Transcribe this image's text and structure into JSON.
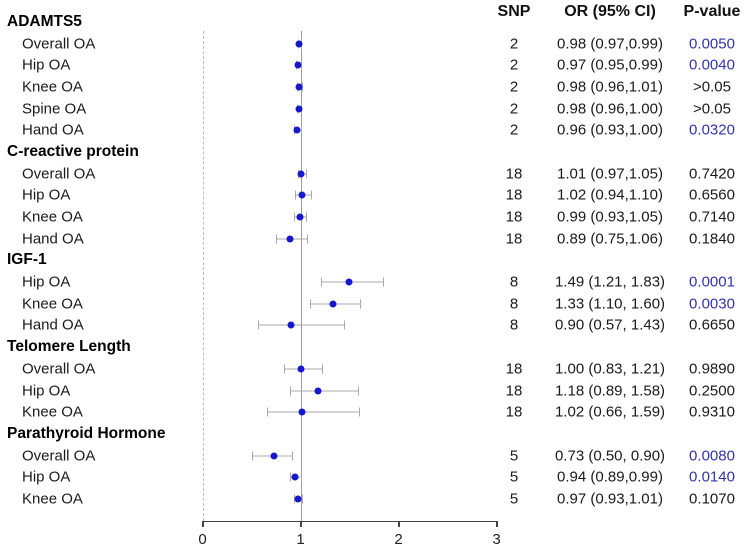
{
  "chart_data": {
    "type": "scatter",
    "subtype": "forest-plot",
    "title": "",
    "xlabel": "",
    "xlim": [
      0,
      3
    ],
    "x_ticks": [
      "0",
      "1",
      "2",
      "3"
    ],
    "reference_line_x": 1,
    "dashed_line_x": 0,
    "grid": false,
    "columns": {
      "snp": "SNP",
      "or": "OR (95% CI)",
      "p": "P-value"
    },
    "colors": {
      "point": "#1717cd",
      "whisker": "#a9a9a9",
      "significant_p": "#3333aa",
      "normal_text": "#1a1a1a",
      "reference_line": "#9c9c9c",
      "dashed_line": "#a9c2cd"
    },
    "groups": [
      {
        "label": "ADAMTS5",
        "rows": [
          {
            "label": "Overall OA",
            "snp": "2",
            "or": 0.98,
            "lo": 0.97,
            "hi": 0.99,
            "or_text": "0.98 (0.97,0.99)",
            "p": "0.0050",
            "sig": true
          },
          {
            "label": "Hip OA",
            "snp": "2",
            "or": 0.97,
            "lo": 0.95,
            "hi": 0.99,
            "or_text": "0.97 (0.95,0.99)",
            "p": "0.0040",
            "sig": true
          },
          {
            "label": "Knee OA",
            "snp": "2",
            "or": 0.98,
            "lo": 0.96,
            "hi": 1.01,
            "or_text": "0.98 (0.96,1.01)",
            "p": ">0.05",
            "sig": false
          },
          {
            "label": "Spine OA",
            "snp": "2",
            "or": 0.98,
            "lo": 0.96,
            "hi": 1.0,
            "or_text": "0.98 (0.96,1.00)",
            "p": ">0.05",
            "sig": false
          },
          {
            "label": "Hand OA",
            "snp": "2",
            "or": 0.96,
            "lo": 0.93,
            "hi": 1.0,
            "or_text": "0.96 (0.93,1.00)",
            "p": "0.0320",
            "sig": true
          }
        ]
      },
      {
        "label": "C-reactive protein",
        "rows": [
          {
            "label": "Overall OA",
            "snp": "18",
            "or": 1.01,
            "lo": 0.97,
            "hi": 1.05,
            "or_text": "1.01 (0.97,1.05)",
            "p": "0.7420",
            "sig": false
          },
          {
            "label": "Hip OA",
            "snp": "18",
            "or": 1.02,
            "lo": 0.94,
            "hi": 1.1,
            "or_text": "1.02 (0.94,1.10)",
            "p": "0.6560",
            "sig": false
          },
          {
            "label": "Knee OA",
            "snp": "18",
            "or": 0.99,
            "lo": 0.93,
            "hi": 1.05,
            "or_text": "0.99 (0.93,1.05)",
            "p": "0.7140",
            "sig": false
          },
          {
            "label": "Hand OA",
            "snp": "18",
            "or": 0.89,
            "lo": 0.75,
            "hi": 1.06,
            "or_text": "0.89 (0.75,1.06)",
            "p": "0.1840",
            "sig": false
          }
        ]
      },
      {
        "label": "IGF-1",
        "rows": [
          {
            "label": "Hip OA",
            "snp": "8",
            "or": 1.49,
            "lo": 1.21,
            "hi": 1.83,
            "or_text": "1.49 (1.21, 1.83)",
            "p": "0.0001",
            "sig": true
          },
          {
            "label": "Knee OA",
            "snp": "8",
            "or": 1.33,
            "lo": 1.1,
            "hi": 1.6,
            "or_text": "1.33 (1.10, 1.60)",
            "p": "0.0030",
            "sig": true
          },
          {
            "label": "Hand OA",
            "snp": "8",
            "or": 0.9,
            "lo": 0.57,
            "hi": 1.43,
            "or_text": "0.90 (0.57, 1.43)",
            "p": "0.6650",
            "sig": false
          }
        ]
      },
      {
        "label": "Telomere Length",
        "rows": [
          {
            "label": "Overall OA",
            "snp": "18",
            "or": 1.0,
            "lo": 0.83,
            "hi": 1.21,
            "or_text": "1.00 (0.83, 1.21)",
            "p": "0.9890",
            "sig": false
          },
          {
            "label": "Hip OA",
            "snp": "18",
            "or": 1.18,
            "lo": 0.89,
            "hi": 1.58,
            "or_text": "1.18 (0.89, 1.58)",
            "p": "0.2500",
            "sig": false
          },
          {
            "label": "Knee OA",
            "snp": "18",
            "or": 1.02,
            "lo": 0.66,
            "hi": 1.59,
            "or_text": "1.02 (0.66, 1.59)",
            "p": "0.9310",
            "sig": false
          }
        ]
      },
      {
        "label": "Parathyroid Hormone",
        "rows": [
          {
            "label": "Overall OA",
            "snp": "5",
            "or": 0.73,
            "lo": 0.5,
            "hi": 0.9,
            "or_text": "0.73 (0.50, 0.90)",
            "p": "0.0080",
            "sig": true
          },
          {
            "label": "Hip OA",
            "snp": "5",
            "or": 0.94,
            "lo": 0.89,
            "hi": 0.99,
            "or_text": "0.94 (0.89,0.99)",
            "p": "0.0140",
            "sig": true
          },
          {
            "label": "Knee OA",
            "snp": "5",
            "or": 0.97,
            "lo": 0.93,
            "hi": 1.01,
            "or_text": "0.97 (0.93,1.01)",
            "p": "0.1070",
            "sig": false
          }
        ]
      }
    ]
  }
}
